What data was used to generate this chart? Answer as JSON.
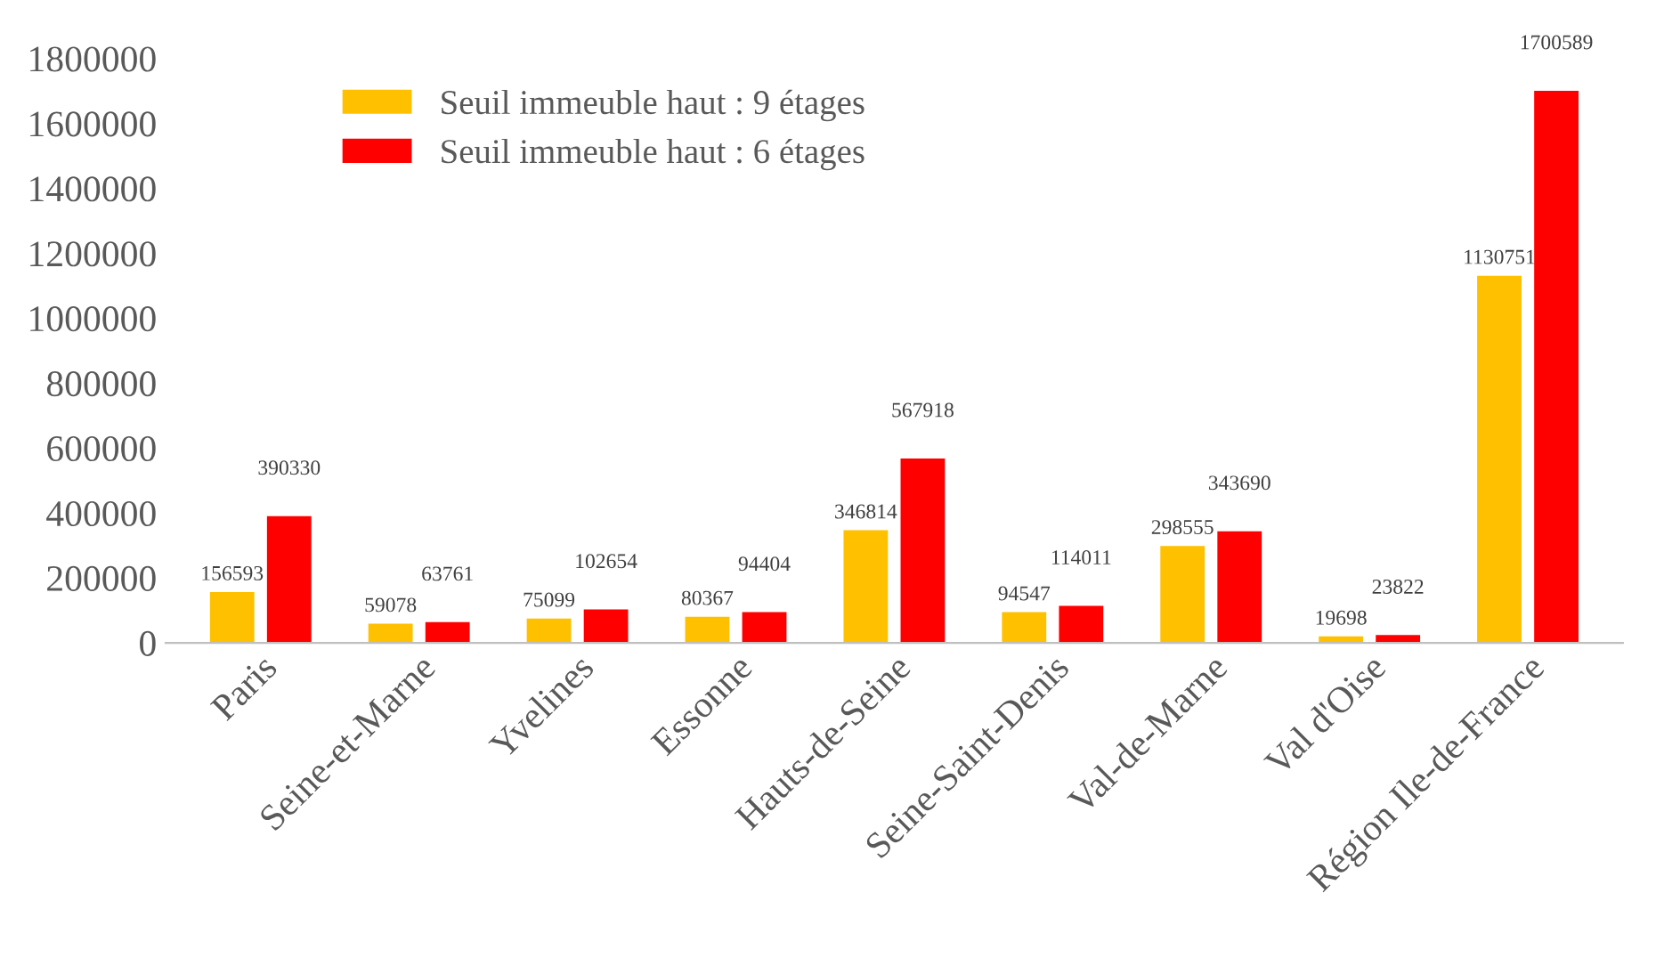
{
  "chart_data": {
    "type": "bar",
    "categories": [
      "Paris",
      "Seine-et-Marne",
      "Yvelines",
      "Essonne",
      "Hauts-de-Seine",
      "Seine-Saint-Denis",
      "Val-de-Marne",
      "Val d'Oise",
      "Région Ile-de-France"
    ],
    "series": [
      {
        "name": "Seuil immeuble haut : 9 étages",
        "color": "#ffc000",
        "values": [
          156593,
          59078,
          75099,
          80367,
          346814,
          94547,
          298555,
          19698,
          1130751
        ]
      },
      {
        "name": "Seuil immeuble haut : 6 étages",
        "color": "#ff0000",
        "values": [
          390330,
          63761,
          102654,
          94404,
          567918,
          114011,
          343690,
          23822,
          1700589
        ]
      }
    ],
    "ylim": [
      0,
      1800000
    ],
    "yticks": [
      0,
      200000,
      400000,
      600000,
      800000,
      1000000,
      1200000,
      1400000,
      1600000,
      1800000
    ],
    "grid": false,
    "legend": "top left",
    "data_labels": true
  }
}
